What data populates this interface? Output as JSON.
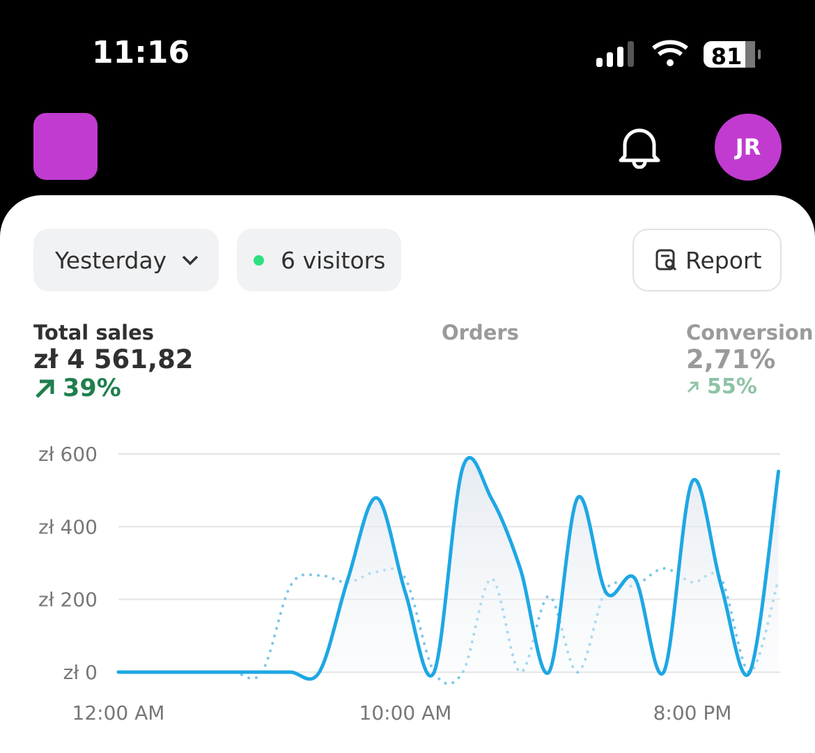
{
  "status_bar": {
    "time": "11:16",
    "battery": "81"
  },
  "header": {
    "avatar": "JR"
  },
  "filters": {
    "period": "Yesterday",
    "visitors": "6 visitors",
    "report": "Report"
  },
  "metrics": [
    {
      "label": "Total sales",
      "value": "zł 4 561,82",
      "change": "39%"
    },
    {
      "label": "Orders"
    },
    {
      "label": "Conversion",
      "value": "2,71%",
      "change": "55%"
    }
  ],
  "chart_data": {
    "type": "line",
    "categories": [
      "12:00 AM",
      null,
      null,
      null,
      null,
      null,
      null,
      null,
      null,
      null,
      "10:00 AM",
      null,
      null,
      null,
      null,
      null,
      null,
      null,
      null,
      null,
      "8:00 PM",
      null,
      null,
      null
    ],
    "series": [
      {
        "color": "#1ea7e4",
        "style": "solid",
        "values": [
          0,
          0,
          0,
          0,
          0,
          0,
          0,
          0,
          257,
          479,
          218,
          0,
          563,
          477,
          285,
          0,
          479,
          218,
          257,
          0,
          525,
          238,
          0,
          552
        ]
      },
      {
        "color": "#7cc6e8",
        "style": "dotted",
        "values": [
          0,
          0,
          0,
          0,
          0,
          0,
          238,
          266,
          247,
          276,
          257,
          0,
          0,
          257,
          0,
          209,
          0,
          228,
          238,
          285,
          247,
          257,
          0,
          257
        ]
      }
    ],
    "ylim": [
      0,
      600
    ],
    "yticks": [
      {
        "value": 0,
        "label": "zł 0"
      },
      {
        "value": 200,
        "label": "zł 200"
      },
      {
        "value": 400,
        "label": "zł 400"
      },
      {
        "value": 600,
        "label": "zł 600"
      }
    ],
    "grid": true
  }
}
